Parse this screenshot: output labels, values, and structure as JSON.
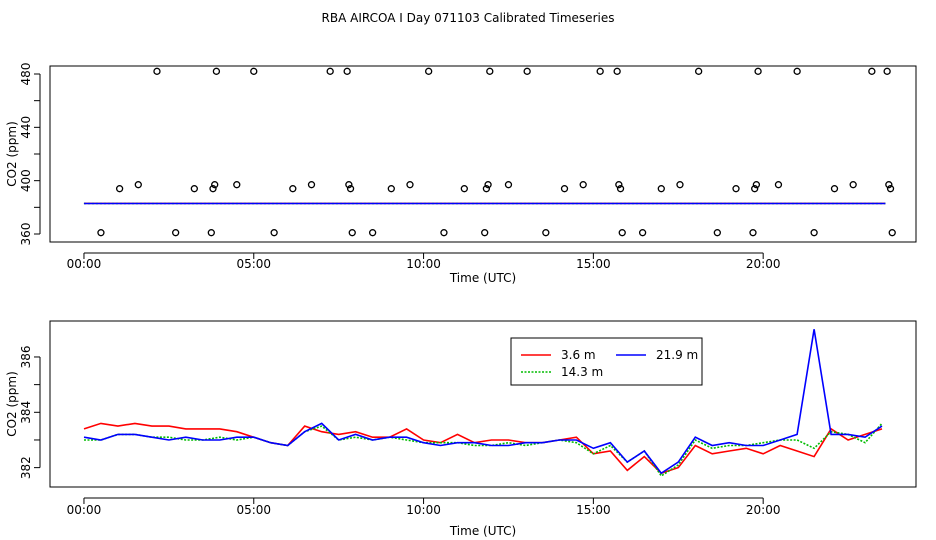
{
  "chart_data": {
    "title": "RBA AIRCOA I  Day 071103  Calibrated Timeseries",
    "panels": [
      {
        "type": "scatter",
        "name": "top",
        "xlabel": "Time (UTC)",
        "ylabel": "CO2 (ppm)",
        "xlim": [
          -1.0,
          24.5
        ],
        "ylim": [
          354,
          486
        ],
        "xticks": [
          0,
          5,
          10,
          15,
          20
        ],
        "xtick_labels": [
          "00:00",
          "05:00",
          "10:00",
          "15:00",
          "20:00"
        ],
        "yticks": [
          360,
          380,
          400,
          420,
          440,
          460,
          480
        ],
        "ytick_labels": [
          "360",
          "",
          "400",
          "",
          "440",
          "",
          "480"
        ],
        "points": [
          [
            0.5,
            361
          ],
          [
            1.05,
            394
          ],
          [
            1.6,
            397
          ],
          [
            2.15,
            482
          ],
          [
            2.7,
            361
          ],
          [
            3.25,
            394
          ],
          [
            3.75,
            361
          ],
          [
            3.8,
            394
          ],
          [
            3.85,
            397
          ],
          [
            3.9,
            482
          ],
          [
            4.5,
            397
          ],
          [
            5.0,
            482
          ],
          [
            5.6,
            361
          ],
          [
            6.15,
            394
          ],
          [
            6.7,
            397
          ],
          [
            7.25,
            482
          ],
          [
            7.75,
            482
          ],
          [
            7.8,
            397
          ],
          [
            7.85,
            394
          ],
          [
            7.9,
            361
          ],
          [
            8.5,
            361
          ],
          [
            9.05,
            394
          ],
          [
            9.6,
            397
          ],
          [
            10.15,
            482
          ],
          [
            10.6,
            361
          ],
          [
            11.2,
            394
          ],
          [
            11.8,
            361
          ],
          [
            11.85,
            394
          ],
          [
            11.9,
            397
          ],
          [
            11.95,
            482
          ],
          [
            12.5,
            397
          ],
          [
            13.05,
            482
          ],
          [
            13.6,
            361
          ],
          [
            14.15,
            394
          ],
          [
            14.7,
            397
          ],
          [
            15.2,
            482
          ],
          [
            15.7,
            482
          ],
          [
            15.75,
            397
          ],
          [
            15.8,
            394
          ],
          [
            15.85,
            361
          ],
          [
            16.45,
            361
          ],
          [
            17.0,
            394
          ],
          [
            17.55,
            397
          ],
          [
            18.1,
            482
          ],
          [
            18.65,
            361
          ],
          [
            19.2,
            394
          ],
          [
            19.7,
            361
          ],
          [
            19.75,
            394
          ],
          [
            19.8,
            397
          ],
          [
            19.85,
            482
          ],
          [
            20.45,
            397
          ],
          [
            21.0,
            482
          ],
          [
            21.5,
            361
          ],
          [
            22.1,
            394
          ],
          [
            22.65,
            397
          ],
          [
            23.2,
            482
          ],
          [
            23.65,
            482
          ],
          [
            23.7,
            397
          ],
          [
            23.75,
            394
          ],
          [
            23.8,
            361
          ]
        ],
        "series": [
          {
            "name": "3.6 m",
            "color": "#ff0000",
            "style": "solid",
            "level": 383
          },
          {
            "name": "14.3 m",
            "color": "#00bb00",
            "style": "dotted",
            "level": 382.9
          },
          {
            "name": "21.9 m",
            "color": "#0000ff",
            "style": "solid",
            "level": 382.9
          }
        ]
      },
      {
        "type": "line",
        "name": "bottom",
        "xlabel": "Time (UTC)",
        "ylabel": "CO2 (ppm)",
        "xlim": [
          -1.0,
          24.5
        ],
        "ylim": [
          381.3,
          387.3
        ],
        "xticks": [
          0,
          5,
          10,
          15,
          20
        ],
        "xtick_labels": [
          "00:00",
          "05:00",
          "10:00",
          "15:00",
          "20:00"
        ],
        "yticks": [
          382,
          383,
          384,
          385,
          386
        ],
        "ytick_labels": [
          "382",
          "",
          "384",
          "",
          "386"
        ],
        "legend": "top-center",
        "x": [
          0,
          0.5,
          1,
          1.5,
          2,
          2.5,
          3,
          3.5,
          4,
          4.5,
          5,
          5.5,
          6,
          6.5,
          7,
          7.5,
          8,
          8.5,
          9,
          9.5,
          10,
          10.5,
          11,
          11.5,
          12,
          12.5,
          13,
          13.5,
          14,
          14.5,
          15,
          15.5,
          16,
          16.5,
          17,
          17.5,
          18,
          18.5,
          19,
          19.5,
          20,
          20.5,
          21,
          21.5,
          22,
          22.5,
          23,
          23.5
        ],
        "series": [
          {
            "name": "3.6 m",
            "color": "#ff0000",
            "style": "solid",
            "values": [
              383.4,
              383.6,
              383.5,
              383.6,
              383.5,
              383.5,
              383.4,
              383.4,
              383.4,
              383.3,
              383.1,
              382.9,
              382.8,
              383.5,
              383.3,
              383.2,
              383.3,
              383.1,
              383.1,
              383.4,
              383.0,
              382.9,
              383.2,
              382.9,
              383.0,
              383.0,
              382.9,
              382.9,
              383.0,
              383.1,
              382.5,
              382.6,
              381.9,
              382.4,
              381.8,
              382.0,
              382.8,
              382.5,
              382.6,
              382.7,
              382.5,
              382.8,
              382.6,
              382.4,
              383.4,
              383.0,
              383.2,
              383.4
            ]
          },
          {
            "name": "14.3 m",
            "color": "#00bb00",
            "style": "dotted",
            "values": [
              383.0,
              383.0,
              383.2,
              383.2,
              383.1,
              383.1,
              383.0,
              383.0,
              383.1,
              383.0,
              383.1,
              382.9,
              382.8,
              383.3,
              383.5,
              383.0,
              383.1,
              383.0,
              383.1,
              383.0,
              382.9,
              382.9,
              382.9,
              382.8,
              382.8,
              382.9,
              382.8,
              382.9,
              383.0,
              382.9,
              382.5,
              382.8,
              382.2,
              382.6,
              381.7,
              382.1,
              383.0,
              382.7,
              382.8,
              382.8,
              382.9,
              383.0,
              383.0,
              382.7,
              383.3,
              383.2,
              382.9,
              383.6
            ]
          },
          {
            "name": "21.9 m",
            "color": "#0000ff",
            "style": "solid",
            "values": [
              383.1,
              383.0,
              383.2,
              383.2,
              383.1,
              383.0,
              383.1,
              383.0,
              383.0,
              383.1,
              383.1,
              382.9,
              382.8,
              383.3,
              383.6,
              383.0,
              383.2,
              383.0,
              383.1,
              383.1,
              382.9,
              382.8,
              382.9,
              382.9,
              382.8,
              382.8,
              382.9,
              382.9,
              383.0,
              383.0,
              382.7,
              382.9,
              382.2,
              382.6,
              381.8,
              382.2,
              383.1,
              382.8,
              382.9,
              382.8,
              382.8,
              383.0,
              383.2,
              387.0,
              383.2,
              383.2,
              383.1,
              383.5
            ]
          }
        ]
      }
    ]
  }
}
